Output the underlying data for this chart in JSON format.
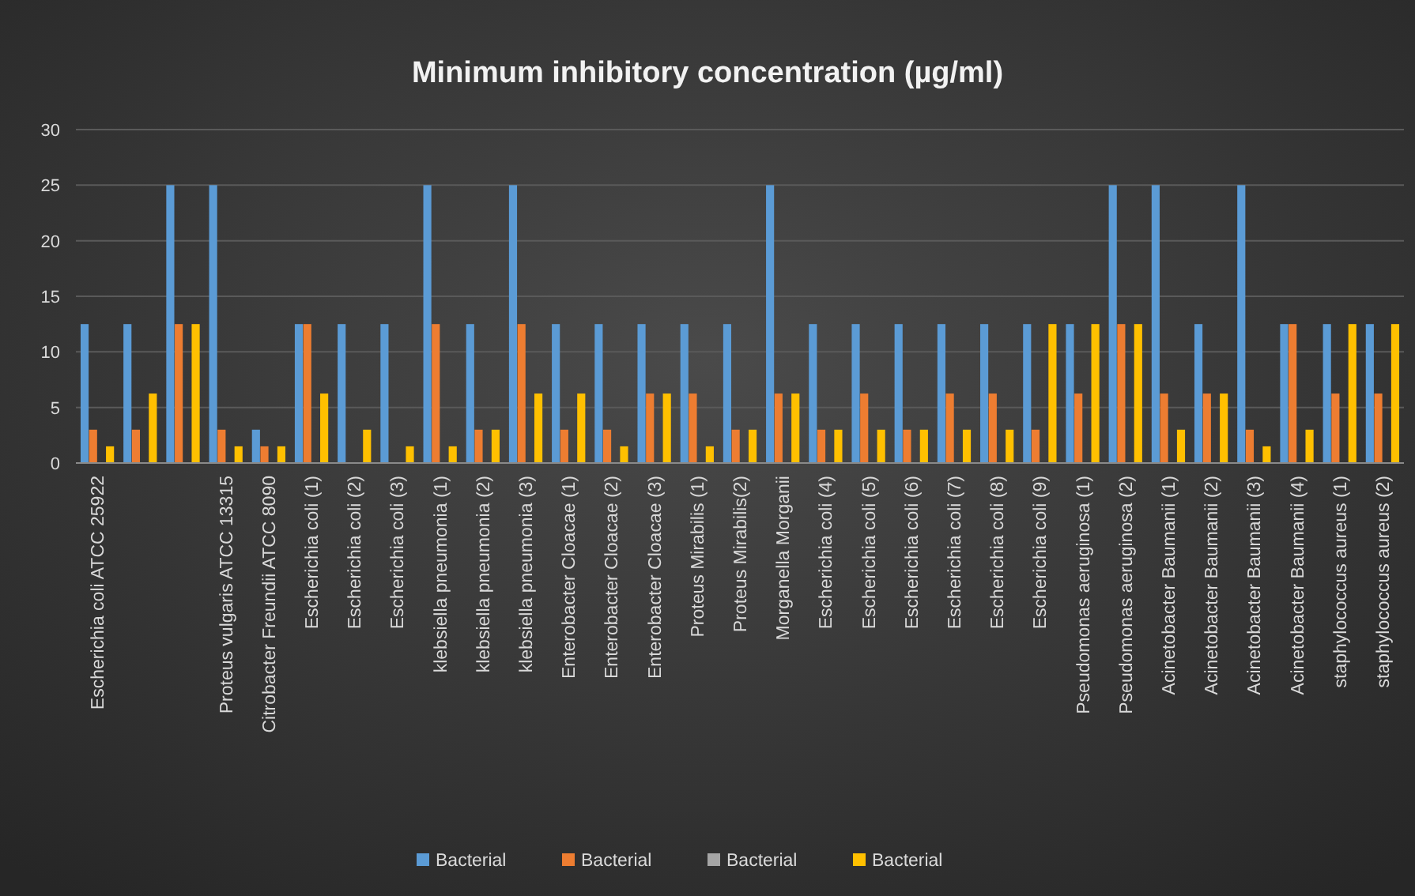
{
  "chart_data": {
    "type": "bar",
    "title": "Minimum inhibitory concentration (µg/ml)",
    "categories": [
      "Escherichia coli ATCC 25922",
      null,
      null,
      "Proteus vulgaris ATCC 13315",
      "Citrobacter Freundii ATCC 8090",
      "Escherichia coli (1)",
      "Escherichia coli (2)",
      "Escherichia coli (3)",
      "klebsiella pneumonia (1)",
      "klebsiella pneumonia (2)",
      "klebsiella pneumonia (3)",
      "Enterobacter Cloacae (1)",
      "Enterobacter Cloacae (2)",
      "Enterobacter Cloacae (3)",
      "Proteus Mirabilis (1)",
      "Proteus Mirabilis(2)",
      "Morganella Morganii",
      "Escherichia coli (4)",
      "Escherichia coli (5)",
      "Escherichia coli (6)",
      "Escherichia coli (7)",
      "Escherichia coli (8)",
      "Escherichia coli (9)",
      "Pseudomonas aeruginosa (1)",
      "Pseudomonas aeruginosa (2)",
      "Acinetobacter Baumanii (1)",
      "Acinetobacter Baumanii (2)",
      "Acinetobacter Baumanii (3)",
      "Acinetobacter Baumanii (4)",
      "staphylococcus aureus (1)",
      "staphylococcus aureus (2)"
    ],
    "series": [
      {
        "name": "Bacterial",
        "color": "#5b9bd5",
        "values": [
          12.5,
          12.5,
          25,
          25,
          3,
          12.5,
          12.5,
          12.5,
          25,
          12.5,
          25,
          12.5,
          12.5,
          12.5,
          12.5,
          12.5,
          25,
          12.5,
          12.5,
          12.5,
          12.5,
          12.5,
          12.5,
          12.5,
          25,
          25,
          12.5,
          25,
          12.5,
          12.5,
          12.5
        ]
      },
      {
        "name": "Bacterial",
        "color": "#ed7d31",
        "values": [
          3,
          3,
          12.5,
          3,
          1.5,
          12.5,
          0,
          0,
          12.5,
          3,
          12.5,
          3,
          3,
          6.25,
          6.25,
          3,
          6.25,
          3,
          6.25,
          3,
          6.25,
          6.25,
          3,
          6.25,
          12.5,
          6.25,
          6.25,
          3,
          12.5,
          6.25,
          6.25
        ]
      },
      {
        "name": "Bacterial",
        "color": "#a5a5a5",
        "values": [
          0,
          0,
          0,
          0,
          0,
          0,
          0,
          0,
          0,
          0,
          0,
          0,
          0,
          0,
          0,
          0,
          0,
          0,
          0,
          0,
          0,
          0,
          0,
          0,
          0,
          0,
          0,
          0,
          0,
          0,
          0
        ]
      },
      {
        "name": "Bacterial",
        "color": "#ffc000",
        "values": [
          1.5,
          6.25,
          12.5,
          1.5,
          1.5,
          6.25,
          3,
          1.5,
          1.5,
          3,
          6.25,
          6.25,
          1.5,
          6.25,
          1.5,
          3,
          6.25,
          3,
          3,
          3,
          3,
          3,
          12.5,
          12.5,
          12.5,
          3,
          6.25,
          1.5,
          3,
          12.5,
          12.5
        ]
      }
    ],
    "ylim": [
      0,
      30
    ],
    "yticks": [
      0,
      5,
      10,
      15,
      20,
      25,
      30
    ],
    "grid": "y",
    "legend": "bottom"
  }
}
